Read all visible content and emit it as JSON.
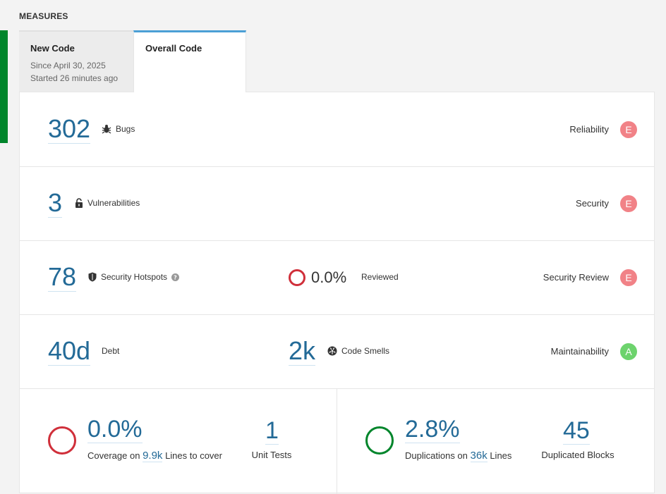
{
  "section_title": "MEASURES",
  "tabs": [
    {
      "title": "New Code",
      "sub1": "Since April 30, 2025",
      "sub2": "Started 26 minutes ago"
    },
    {
      "title": "Overall Code"
    }
  ],
  "reliability": {
    "value": "302",
    "label": "Bugs",
    "rating_label": "Reliability",
    "rating": "E"
  },
  "security": {
    "value": "3",
    "label": "Vulnerabilities",
    "rating_label": "Security",
    "rating": "E"
  },
  "hotspots": {
    "value": "78",
    "label": "Security Hotspots",
    "reviewed_pct": "0.0%",
    "reviewed_label": "Reviewed",
    "rating_label": "Security Review",
    "rating": "E"
  },
  "maintainability": {
    "debt_value": "40d",
    "debt_label": "Debt",
    "smells_value": "2k",
    "smells_label": "Code Smells",
    "rating_label": "Maintainability",
    "rating": "A"
  },
  "coverage": {
    "value": "0.0%",
    "prefix": "Coverage on",
    "lines": "9.9k",
    "suffix": "Lines to cover",
    "unit_tests_value": "1",
    "unit_tests_label": "Unit Tests"
  },
  "duplications": {
    "value": "2.8%",
    "prefix": "Duplications on",
    "lines": "36k",
    "suffix": "Lines",
    "blocks_value": "45",
    "blocks_label": "Duplicated Blocks"
  },
  "colors": {
    "accent": "#236a97",
    "rating_e": "#f18287",
    "rating_a": "#6dd36d",
    "ring_red": "#d02f3a",
    "ring_green": "#00852b",
    "status_bar": "#00852b"
  },
  "icons": [
    "bug-icon",
    "lock-icon",
    "shield-icon",
    "help-icon",
    "code-smell-icon"
  ]
}
